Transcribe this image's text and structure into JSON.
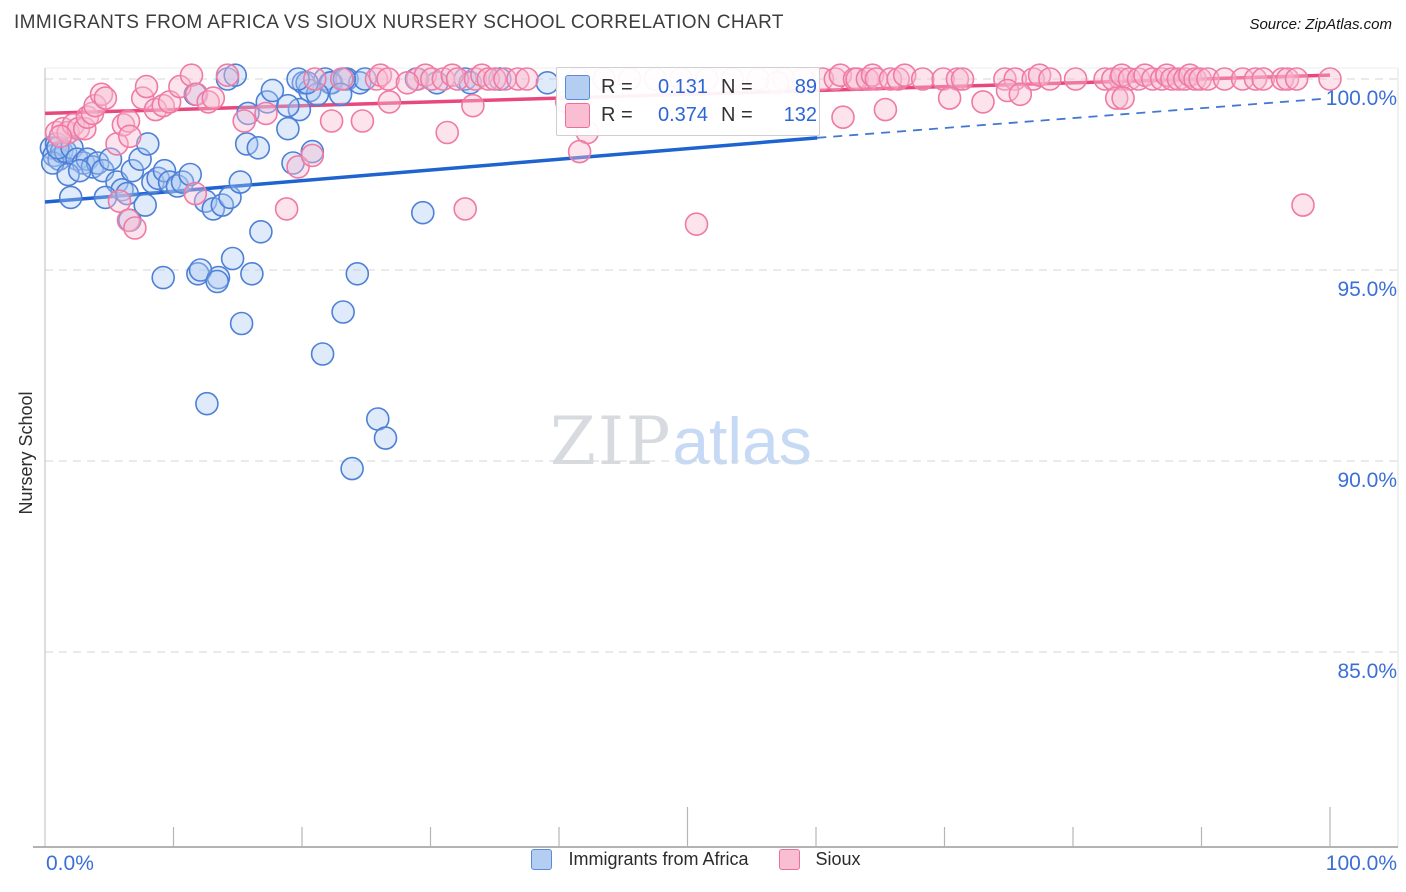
{
  "header": {
    "title": "IMMIGRANTS FROM AFRICA VS SIOUX NURSERY SCHOOL CORRELATION CHART",
    "source": "Source: ZipAtlas.com"
  },
  "watermark": {
    "zip": "ZIP",
    "atlas": "atlas"
  },
  "legend_box": {
    "series": [
      {
        "r_label": "R =",
        "r_value": "0.131",
        "n_label": "N =",
        "n_value": "89"
      },
      {
        "r_label": "R =",
        "r_value": "0.374",
        "n_label": "N =",
        "n_value": "132"
      }
    ]
  },
  "bottom_legend": {
    "items": [
      {
        "label": "Immigrants from Africa"
      },
      {
        "label": "Sioux"
      }
    ]
  },
  "chart_data": {
    "type": "scatter",
    "title": "IMMIGRANTS FROM AFRICA VS SIOUX NURSERY SCHOOL CORRELATION CHART",
    "xlabel": "",
    "ylabel": "Nursery School",
    "x_axis": {
      "min": 0,
      "max": 100,
      "left_label": "0.0%",
      "right_label": "100.0%",
      "tick_step_pct": 10,
      "major_ticks_pct": [
        50,
        100
      ],
      "grid": false
    },
    "y_axis": {
      "min": 79.9,
      "max": 100.3,
      "grid": true,
      "gridline_style": "dashed",
      "ticks": [
        {
          "value": 100,
          "label": "100.0%"
        },
        {
          "value": 95,
          "label": "95.0%"
        },
        {
          "value": 90,
          "label": "90.0%"
        },
        {
          "value": 85,
          "label": "85.0%"
        }
      ]
    },
    "legend_position": "bottom-center",
    "series": [
      {
        "name": "Immigrants from Africa",
        "R": 0.131,
        "N": 89,
        "stroke": "#4d80d6",
        "fill": "#aac9f2",
        "fill_opacity": 0.38,
        "points": [
          [
            0.5,
            98.2
          ],
          [
            0.7,
            98.0
          ],
          [
            0.9,
            98.3
          ],
          [
            1.1,
            97.9
          ],
          [
            1.3,
            98.1
          ],
          [
            0.6,
            97.8
          ],
          [
            1.6,
            98.1
          ],
          [
            1.0,
            98.2
          ],
          [
            2.1,
            98.2
          ],
          [
            2.5,
            97.9
          ],
          [
            3.0,
            97.8
          ],
          [
            3.3,
            97.9
          ],
          [
            3.7,
            97.7
          ],
          [
            4.1,
            97.8
          ],
          [
            4.5,
            97.6
          ],
          [
            5.1,
            97.9
          ],
          [
            1.8,
            97.5
          ],
          [
            2.7,
            97.6
          ],
          [
            5.6,
            97.3
          ],
          [
            6.0,
            97.1
          ],
          [
            6.4,
            97.0
          ],
          [
            6.8,
            97.6
          ],
          [
            7.4,
            97.9
          ],
          [
            8.0,
            98.3
          ],
          [
            8.4,
            97.3
          ],
          [
            8.8,
            97.4
          ],
          [
            9.3,
            97.6
          ],
          [
            9.7,
            97.3
          ],
          [
            10.3,
            97.2
          ],
          [
            10.7,
            97.3
          ],
          [
            11.3,
            97.5
          ],
          [
            12.5,
            96.8
          ],
          [
            13.1,
            96.6
          ],
          [
            13.8,
            96.7
          ],
          [
            14.4,
            96.9
          ],
          [
            15.2,
            97.3
          ],
          [
            15.7,
            98.3
          ],
          [
            16.6,
            98.2
          ],
          [
            17.3,
            99.4
          ],
          [
            17.7,
            99.7
          ],
          [
            18.9,
            98.7
          ],
          [
            19.3,
            97.8
          ],
          [
            20.8,
            98.1
          ],
          [
            14.2,
            100
          ],
          [
            14.8,
            100.1
          ],
          [
            20.1,
            99.9
          ],
          [
            21.8,
            100
          ],
          [
            22.3,
            99.9
          ],
          [
            23.5,
            100
          ],
          [
            24.5,
            99.9
          ],
          [
            24.9,
            100
          ],
          [
            30.5,
            99.9
          ],
          [
            32.7,
            100
          ],
          [
            33.1,
            99.9
          ],
          [
            35.4,
            100
          ],
          [
            39.1,
            99.9
          ],
          [
            22.2,
            99.9
          ],
          [
            23.3,
            100
          ],
          [
            28.9,
            100
          ],
          [
            20.6,
            99.7
          ],
          [
            21.2,
            99.6
          ],
          [
            23.0,
            99.6
          ],
          [
            19.8,
            99.2
          ],
          [
            11.7,
            99.6
          ],
          [
            15.8,
            99.1
          ],
          [
            18.9,
            99.3
          ],
          [
            20.4,
            99.9
          ],
          [
            19.7,
            100
          ],
          [
            29.4,
            96.5
          ],
          [
            25.9,
            91.1
          ],
          [
            26.5,
            90.6
          ],
          [
            23.9,
            89.8
          ],
          [
            21.6,
            92.8
          ],
          [
            23.2,
            93.9
          ],
          [
            15.3,
            93.6
          ],
          [
            12.6,
            91.5
          ],
          [
            9.2,
            94.8
          ],
          [
            11.9,
            94.9
          ],
          [
            13.5,
            94.8
          ],
          [
            16.1,
            94.9
          ],
          [
            24.3,
            94.9
          ],
          [
            12.1,
            95.0
          ],
          [
            13.4,
            94.7
          ],
          [
            14.6,
            95.3
          ],
          [
            4.7,
            96.9
          ],
          [
            6.6,
            96.3
          ],
          [
            7.8,
            96.7
          ],
          [
            16.8,
            96.0
          ],
          [
            2.0,
            96.9
          ]
        ]
      },
      {
        "name": "Sioux",
        "R": 0.374,
        "N": 132,
        "stroke": "#ef7aa4",
        "fill": "#f7bdd2",
        "fill_opacity": 0.42,
        "points": [
          [
            0.9,
            98.6
          ],
          [
            1.4,
            98.7
          ],
          [
            1.8,
            98.6
          ],
          [
            2.2,
            98.8
          ],
          [
            2.6,
            98.7
          ],
          [
            3.1,
            98.7
          ],
          [
            1.2,
            98.5
          ],
          [
            3.3,
            99.0
          ],
          [
            3.7,
            99.1
          ],
          [
            3.9,
            99.3
          ],
          [
            4.4,
            99.6
          ],
          [
            4.7,
            99.5
          ],
          [
            5.6,
            98.3
          ],
          [
            6.1,
            98.8
          ],
          [
            6.5,
            98.9
          ],
          [
            7.6,
            99.5
          ],
          [
            7.9,
            99.8
          ],
          [
            8.6,
            99.2
          ],
          [
            9.2,
            99.3
          ],
          [
            9.7,
            99.4
          ],
          [
            10.5,
            99.8
          ],
          [
            11.4,
            100.1
          ],
          [
            11.8,
            99.6
          ],
          [
            12.7,
            99.4
          ],
          [
            13.1,
            99.5
          ],
          [
            14.2,
            100.1
          ],
          [
            6.6,
            98.5
          ],
          [
            5.8,
            96.8
          ],
          [
            6.5,
            96.3
          ],
          [
            7.0,
            96.1
          ],
          [
            11.7,
            97.0
          ],
          [
            18.8,
            96.6
          ],
          [
            19.7,
            97.7
          ],
          [
            20.8,
            98.0
          ],
          [
            22.3,
            98.9
          ],
          [
            24.7,
            98.9
          ],
          [
            26.8,
            99.4
          ],
          [
            31.3,
            98.6
          ],
          [
            33.3,
            99.3
          ],
          [
            32.7,
            96.6
          ],
          [
            50.7,
            96.2
          ],
          [
            42.2,
            98.6
          ],
          [
            40.6,
            99.4
          ],
          [
            41.4,
            99.2
          ],
          [
            41.6,
            98.1
          ],
          [
            21.0,
            100
          ],
          [
            23.1,
            100
          ],
          [
            25.8,
            100
          ],
          [
            26.1,
            100.1
          ],
          [
            26.7,
            100
          ],
          [
            29.0,
            100
          ],
          [
            29.6,
            100.1
          ],
          [
            30.1,
            100
          ],
          [
            31.0,
            100
          ],
          [
            31.7,
            100.1
          ],
          [
            32.1,
            100
          ],
          [
            33.5,
            100
          ],
          [
            34.0,
            100.1
          ],
          [
            34.5,
            100
          ],
          [
            35.0,
            100
          ],
          [
            35.8,
            100
          ],
          [
            36.8,
            100
          ],
          [
            37.5,
            100
          ],
          [
            41.5,
            100
          ],
          [
            43.5,
            100
          ],
          [
            45.5,
            100
          ],
          [
            47.5,
            100
          ],
          [
            49.5,
            100
          ],
          [
            51.5,
            100
          ],
          [
            53.5,
            100
          ],
          [
            55.5,
            100
          ],
          [
            57.5,
            100
          ],
          [
            59.0,
            100
          ],
          [
            60.5,
            100
          ],
          [
            61.5,
            100
          ],
          [
            61.9,
            100.1
          ],
          [
            63.0,
            100
          ],
          [
            63.2,
            100
          ],
          [
            64.0,
            100
          ],
          [
            64.4,
            100.1
          ],
          [
            64.7,
            100
          ],
          [
            65.8,
            100
          ],
          [
            66.4,
            100
          ],
          [
            66.9,
            100.1
          ],
          [
            68.3,
            100
          ],
          [
            69.9,
            100
          ],
          [
            71.0,
            100
          ],
          [
            71.4,
            100
          ],
          [
            74.7,
            100
          ],
          [
            75.5,
            100
          ],
          [
            76.9,
            100
          ],
          [
            77.4,
            100.1
          ],
          [
            78.2,
            100
          ],
          [
            80.2,
            100
          ],
          [
            82.5,
            100
          ],
          [
            83.7,
            100
          ],
          [
            83.1,
            100
          ],
          [
            83.8,
            100.1
          ],
          [
            84.4,
            100
          ],
          [
            85.1,
            100
          ],
          [
            85.6,
            100.1
          ],
          [
            86.2,
            100
          ],
          [
            86.9,
            100
          ],
          [
            87.3,
            100.1
          ],
          [
            87.7,
            100
          ],
          [
            88.2,
            100
          ],
          [
            88.7,
            100
          ],
          [
            89.1,
            100.1
          ],
          [
            89.5,
            100
          ],
          [
            89.9,
            100
          ],
          [
            90.5,
            100
          ],
          [
            91.8,
            100
          ],
          [
            93.2,
            100
          ],
          [
            94.2,
            100
          ],
          [
            94.8,
            100
          ],
          [
            96.3,
            100
          ],
          [
            96.7,
            100
          ],
          [
            97.4,
            100
          ],
          [
            100.0,
            100
          ],
          [
            62.1,
            99.0
          ],
          [
            65.4,
            99.2
          ],
          [
            70.4,
            99.5
          ],
          [
            73.0,
            99.4
          ],
          [
            74.9,
            99.7
          ],
          [
            75.9,
            99.6
          ],
          [
            83.4,
            99.5
          ],
          [
            83.9,
            99.5
          ],
          [
            97.9,
            96.7
          ],
          [
            15.5,
            98.9
          ],
          [
            17.2,
            99.1
          ],
          [
            28.2,
            99.9
          ],
          [
            57.0,
            99.9
          ]
        ]
      }
    ],
    "trend_lines": [
      {
        "series": "Sioux",
        "style": "solid",
        "color": "#e8487c",
        "width": 3.5,
        "from": [
          0,
          99.1
        ],
        "to": [
          100,
          100.1
        ]
      },
      {
        "series": "Immigrants from Africa",
        "style": "solid",
        "color": "#1e63cf",
        "width": 3.5,
        "from": [
          0,
          96.78
        ],
        "to": [
          60.1,
          98.46
        ]
      },
      {
        "series": "Immigrants from Africa",
        "style": "dashed",
        "color": "#4377d2",
        "width": 1.8,
        "from": [
          60.1,
          98.46
        ],
        "to": [
          99.4,
          99.48
        ]
      }
    ],
    "colors": {
      "accent_label_blue": "#3b6fd5",
      "grid": "#d5d5d5",
      "axis": "#9a9a9a"
    }
  }
}
